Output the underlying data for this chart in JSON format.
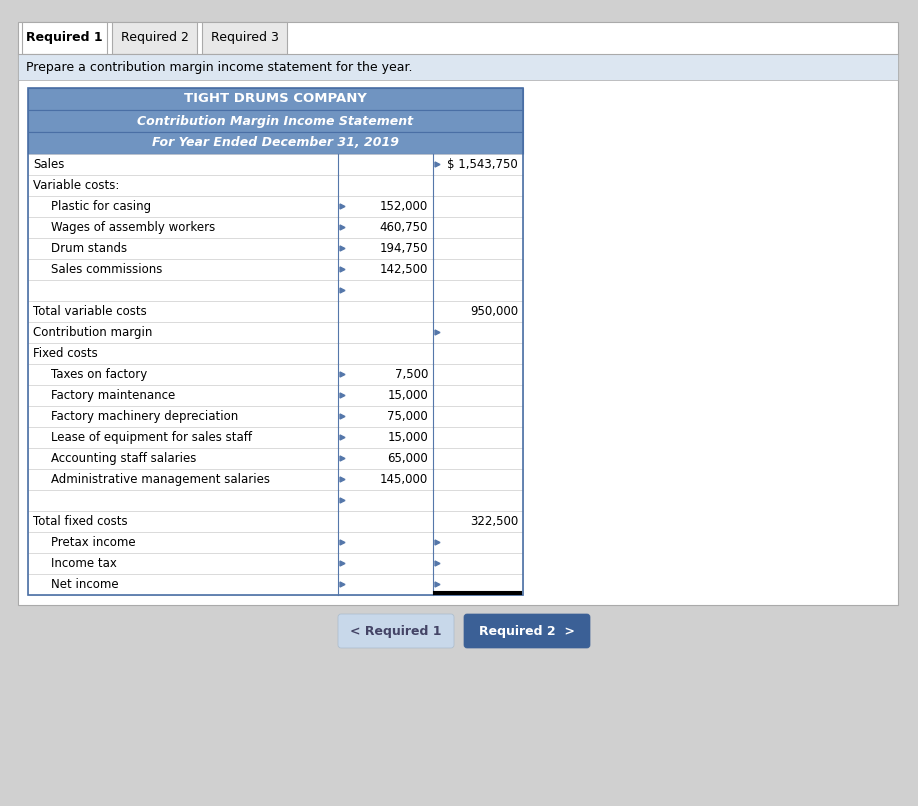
{
  "title1": "TIGHT DRUMS COMPANY",
  "title2": "Contribution Margin Income Statement",
  "title3": "For Year Ended December 31, 2019",
  "tab1": "Required 1",
  "tab2": "Required 2",
  "tab3": "Required 3",
  "instruction": "Prepare a contribution margin income statement for the year.",
  "header_bg": "#7094c1",
  "table_border": "#4a6fa5",
  "light_blue_bg": "#dce6f1",
  "rows": [
    {
      "label": "Sales",
      "col1": "",
      "col2": "$ 1,543,750",
      "indent": 0,
      "bold": false,
      "show_tri_col1": false,
      "show_tri_col2": true
    },
    {
      "label": "Variable costs:",
      "col1": "",
      "col2": "",
      "indent": 0,
      "bold": false,
      "show_tri_col1": false,
      "show_tri_col2": false
    },
    {
      "label": "Plastic for casing",
      "col1": "152,000",
      "col2": "",
      "indent": 1,
      "bold": false,
      "show_tri_col1": true,
      "show_tri_col2": false
    },
    {
      "label": "Wages of assembly workers",
      "col1": "460,750",
      "col2": "",
      "indent": 1,
      "bold": false,
      "show_tri_col1": true,
      "show_tri_col2": false
    },
    {
      "label": "Drum stands",
      "col1": "194,750",
      "col2": "",
      "indent": 1,
      "bold": false,
      "show_tri_col1": true,
      "show_tri_col2": false
    },
    {
      "label": "Sales commissions",
      "col1": "142,500",
      "col2": "",
      "indent": 1,
      "bold": false,
      "show_tri_col1": true,
      "show_tri_col2": false
    },
    {
      "label": "",
      "col1": "",
      "col2": "",
      "indent": 1,
      "bold": false,
      "show_tri_col1": true,
      "show_tri_col2": false
    },
    {
      "label": "Total variable costs",
      "col1": "",
      "col2": "950,000",
      "indent": 0,
      "bold": false,
      "show_tri_col1": false,
      "show_tri_col2": false
    },
    {
      "label": "Contribution margin",
      "col1": "",
      "col2": "",
      "indent": 0,
      "bold": false,
      "show_tri_col1": false,
      "show_tri_col2": true
    },
    {
      "label": "Fixed costs",
      "col1": "",
      "col2": "",
      "indent": 0,
      "bold": false,
      "show_tri_col1": false,
      "show_tri_col2": false
    },
    {
      "label": "Taxes on factory",
      "col1": "7,500",
      "col2": "",
      "indent": 1,
      "bold": false,
      "show_tri_col1": true,
      "show_tri_col2": false
    },
    {
      "label": "Factory maintenance",
      "col1": "15,000",
      "col2": "",
      "indent": 1,
      "bold": false,
      "show_tri_col1": true,
      "show_tri_col2": false
    },
    {
      "label": "Factory machinery depreciation",
      "col1": "75,000",
      "col2": "",
      "indent": 1,
      "bold": false,
      "show_tri_col1": true,
      "show_tri_col2": false
    },
    {
      "label": "Lease of equipment for sales staff",
      "col1": "15,000",
      "col2": "",
      "indent": 1,
      "bold": false,
      "show_tri_col1": true,
      "show_tri_col2": false
    },
    {
      "label": "Accounting staff salaries",
      "col1": "65,000",
      "col2": "",
      "indent": 1,
      "bold": false,
      "show_tri_col1": true,
      "show_tri_col2": false
    },
    {
      "label": "Administrative management salaries",
      "col1": "145,000",
      "col2": "",
      "indent": 1,
      "bold": false,
      "show_tri_col1": true,
      "show_tri_col2": false
    },
    {
      "label": "",
      "col1": "",
      "col2": "",
      "indent": 1,
      "bold": false,
      "show_tri_col1": true,
      "show_tri_col2": false
    },
    {
      "label": "Total fixed costs",
      "col1": "",
      "col2": "322,500",
      "indent": 0,
      "bold": false,
      "show_tri_col1": false,
      "show_tri_col2": false
    },
    {
      "label": "Pretax income",
      "col1": "",
      "col2": "",
      "indent": 1,
      "bold": false,
      "show_tri_col1": true,
      "show_tri_col2": true
    },
    {
      "label": "Income tax",
      "col1": "",
      "col2": "",
      "indent": 1,
      "bold": false,
      "show_tri_col1": true,
      "show_tri_col2": true
    },
    {
      "label": "Net income",
      "col1": "",
      "col2": "",
      "indent": 1,
      "bold": false,
      "show_tri_col1": true,
      "show_tri_col2": true
    }
  ],
  "btn1_text": "< Required 1",
  "btn2_text": "Required 2  >",
  "btn1_color": "#c8d8ea",
  "btn2_color": "#3b6096",
  "bg_color": "#d0d0d0",
  "white": "#ffffff",
  "instruction_bg": "#dce6f1",
  "tab_active_bg": "#ffffff",
  "tab_inactive_bg": "#e8e8e8",
  "border_color": "#aaaaaa",
  "row_border": "#cccccc",
  "col_sep_color": "#5577aa"
}
